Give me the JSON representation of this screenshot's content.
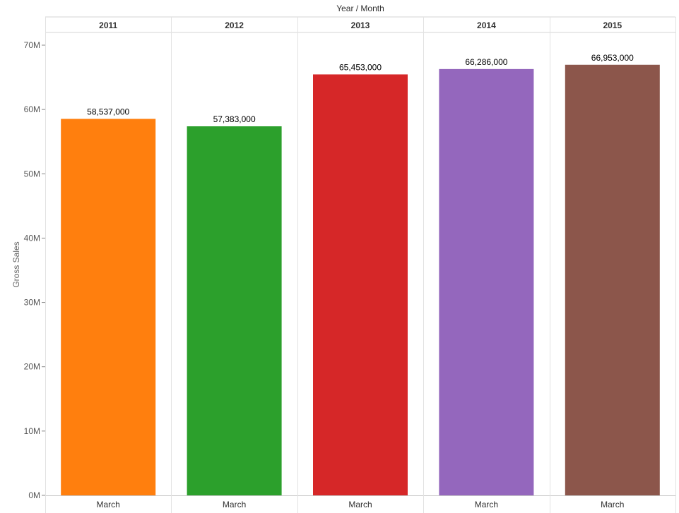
{
  "chart_data": {
    "type": "bar",
    "column_header_title": "Year / Month",
    "ylabel": "Gross Sales",
    "ylim": [
      0,
      70000000
    ],
    "yticks": [
      {
        "value": 0,
        "label": "0M"
      },
      {
        "value": 10000000,
        "label": "10M"
      },
      {
        "value": 20000000,
        "label": "20M"
      },
      {
        "value": 30000000,
        "label": "30M"
      },
      {
        "value": 40000000,
        "label": "40M"
      },
      {
        "value": 50000000,
        "label": "50M"
      },
      {
        "value": 60000000,
        "label": "60M"
      },
      {
        "value": 70000000,
        "label": "70M"
      }
    ],
    "categories": [
      "2011",
      "2012",
      "2013",
      "2014",
      "2015"
    ],
    "month": "March",
    "values": [
      58537000,
      57383000,
      65453000,
      66286000,
      66953000
    ],
    "value_labels": [
      "58,537,000",
      "57,383,000",
      "65,453,000",
      "66,286,000",
      "66,953,000"
    ],
    "colors": [
      "#ff7f0e",
      "#2ca02c",
      "#d62728",
      "#9467bd",
      "#8c564b"
    ],
    "grid": false
  }
}
